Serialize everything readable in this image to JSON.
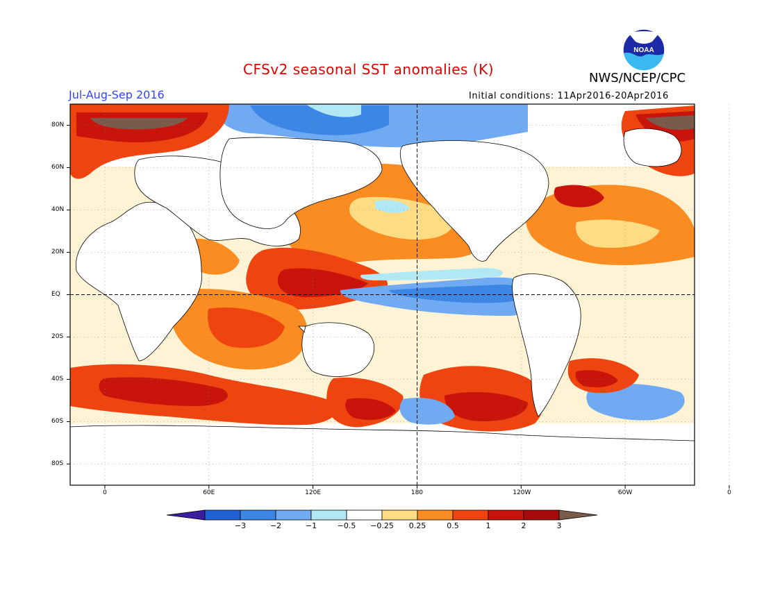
{
  "header": {
    "title": "CFSv2 seasonal SST anomalies (K)",
    "period": "Jul-Aug-Sep 2016",
    "initial_conditions": "Initial conditions: 11Apr2016-20Apr2016",
    "agency": "NWS/NCEP/CPC",
    "logo_text": "NOAA"
  },
  "map": {
    "lat_labels": [
      "80N",
      "60N",
      "40N",
      "20N",
      "EQ",
      "20S",
      "40S",
      "60S",
      "80S"
    ],
    "lon_labels": [
      "0",
      "60E",
      "120E",
      "180",
      "120W",
      "60W",
      "0"
    ]
  },
  "colorbar": {
    "labels": [
      "-3",
      "-2",
      "-1",
      "-0.5",
      "-0.25",
      "0.25",
      "0.5",
      "1",
      "2",
      "3"
    ],
    "colors": [
      "#3b1ea0",
      "#1e62d6",
      "#3c86e6",
      "#70aaf2",
      "#b2e8f4",
      "#ffffff",
      "#fddc84",
      "#fb8c22",
      "#f04410",
      "#c8140a",
      "#a80a0a",
      "#7a5a4a"
    ]
  },
  "colors": {
    "land": "#ffffff",
    "neutral": "#fff4c8",
    "warm_light": "#fddc84",
    "warm": "#fb8c22",
    "warm_strong": "#f04410",
    "hot": "#c8140a",
    "extreme": "#7a5a4a",
    "cool_light": "#b2e8f4",
    "cool": "#70aaf2",
    "cold": "#3c86e6",
    "very_cold": "#1e62d6"
  }
}
